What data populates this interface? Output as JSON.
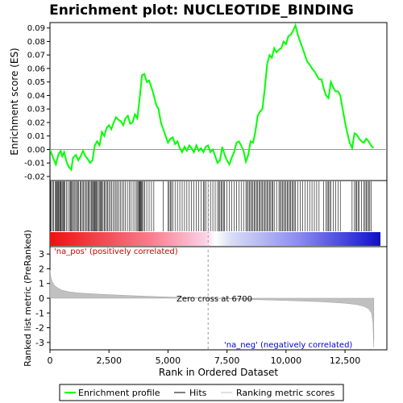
{
  "chart_data": {
    "type": "line",
    "title": "Enrichment plot: NUCLEOTIDE_BINDING",
    "top_panel": {
      "ylabel": "Enrichment score (ES)",
      "ylim": [
        -0.023,
        0.094
      ],
      "yticks": [
        "0.09",
        "0.08",
        "0.07",
        "0.06",
        "0.05",
        "0.04",
        "0.03",
        "0.02",
        "0.01",
        "0.00",
        "-0.01",
        "-0.02"
      ],
      "ytick_values": [
        0.09,
        0.08,
        0.07,
        0.06,
        0.05,
        0.04,
        0.03,
        0.02,
        0.01,
        0.0,
        -0.01,
        -0.02
      ],
      "series_name": "Enrichment profile",
      "color": "#00ff00",
      "points": [
        [
          0,
          0.0
        ],
        [
          150,
          -0.007
        ],
        [
          250,
          -0.011
        ],
        [
          350,
          -0.004
        ],
        [
          450,
          -0.001
        ],
        [
          520,
          -0.005
        ],
        [
          600,
          -0.002
        ],
        [
          700,
          -0.009
        ],
        [
          800,
          -0.013
        ],
        [
          900,
          -0.015
        ],
        [
          980,
          -0.006
        ],
        [
          1100,
          -0.004
        ],
        [
          1200,
          -0.008
        ],
        [
          1300,
          -0.005
        ],
        [
          1400,
          -0.001
        ],
        [
          1500,
          -0.005
        ],
        [
          1600,
          -0.007
        ],
        [
          1700,
          -0.01
        ],
        [
          1800,
          -0.008
        ],
        [
          1900,
          0.003
        ],
        [
          2000,
          0.006
        ],
        [
          2100,
          0.003
        ],
        [
          2200,
          0.013
        ],
        [
          2300,
          0.01
        ],
        [
          2400,
          0.016
        ],
        [
          2500,
          0.018
        ],
        [
          2600,
          0.015
        ],
        [
          2700,
          0.02
        ],
        [
          2800,
          0.024
        ],
        [
          2900,
          0.022
        ],
        [
          3000,
          0.021
        ],
        [
          3100,
          0.018
        ],
        [
          3200,
          0.023
        ],
        [
          3300,
          0.025
        ],
        [
          3400,
          0.019
        ],
        [
          3500,
          0.02
        ],
        [
          3600,
          0.026
        ],
        [
          3700,
          0.023
        ],
        [
          3800,
          0.038
        ],
        [
          3900,
          0.055
        ],
        [
          4000,
          0.056
        ],
        [
          4100,
          0.05
        ],
        [
          4200,
          0.051
        ],
        [
          4300,
          0.046
        ],
        [
          4400,
          0.04
        ],
        [
          4500,
          0.033
        ],
        [
          4600,
          0.03
        ],
        [
          4700,
          0.02
        ],
        [
          4800,
          0.015
        ],
        [
          4900,
          0.01
        ],
        [
          5000,
          0.005
        ],
        [
          5100,
          0.008
        ],
        [
          5200,
          0.009
        ],
        [
          5300,
          0.004
        ],
        [
          5400,
          0.006
        ],
        [
          5500,
          0.001
        ],
        [
          5600,
          -0.002
        ],
        [
          5700,
          0.002
        ],
        [
          5800,
          -0.001
        ],
        [
          5900,
          0.003
        ],
        [
          6000,
          0.001
        ],
        [
          6100,
          -0.002
        ],
        [
          6200,
          0.003
        ],
        [
          6300,
          -0.001
        ],
        [
          6400,
          0.001
        ],
        [
          6500,
          -0.002
        ],
        [
          6600,
          0.002
        ],
        [
          6700,
          0.003
        ],
        [
          6800,
          -0.002
        ],
        [
          6900,
          0.0
        ],
        [
          7000,
          -0.005
        ],
        [
          7100,
          -0.01
        ],
        [
          7200,
          -0.008
        ],
        [
          7300,
          0.002
        ],
        [
          7400,
          -0.004
        ],
        [
          7500,
          -0.008
        ],
        [
          7600,
          -0.011
        ],
        [
          7700,
          -0.006
        ],
        [
          7800,
          -0.002
        ],
        [
          7900,
          0.005
        ],
        [
          8000,
          0.006
        ],
        [
          8100,
          0.003
        ],
        [
          8200,
          -0.001
        ],
        [
          8300,
          -0.009
        ],
        [
          8400,
          -0.004
        ],
        [
          8500,
          0.006
        ],
        [
          8600,
          0.005
        ],
        [
          8700,
          0.013
        ],
        [
          8800,
          0.025
        ],
        [
          8900,
          0.028
        ],
        [
          9000,
          0.03
        ],
        [
          9100,
          0.045
        ],
        [
          9200,
          0.063
        ],
        [
          9300,
          0.07
        ],
        [
          9400,
          0.068
        ],
        [
          9500,
          0.075
        ],
        [
          9600,
          0.072
        ],
        [
          9700,
          0.074
        ],
        [
          9800,
          0.075
        ],
        [
          9900,
          0.08
        ],
        [
          10000,
          0.078
        ],
        [
          10100,
          0.084
        ],
        [
          10200,
          0.085
        ],
        [
          10300,
          0.088
        ],
        [
          10400,
          0.092
        ],
        [
          10500,
          0.085
        ],
        [
          10600,
          0.08
        ],
        [
          10700,
          0.075
        ],
        [
          10800,
          0.07
        ],
        [
          10900,
          0.065
        ],
        [
          11000,
          0.063
        ],
        [
          11100,
          0.06
        ],
        [
          11200,
          0.058
        ],
        [
          11300,
          0.055
        ],
        [
          11400,
          0.052
        ],
        [
          11500,
          0.052
        ],
        [
          11600,
          0.045
        ],
        [
          11700,
          0.04
        ],
        [
          11800,
          0.038
        ],
        [
          11900,
          0.05
        ],
        [
          12000,
          0.046
        ],
        [
          12100,
          0.043
        ],
        [
          12200,
          0.043
        ],
        [
          12300,
          0.04
        ],
        [
          12400,
          0.03
        ],
        [
          12500,
          0.02
        ],
        [
          12600,
          0.012
        ],
        [
          12700,
          0.005
        ],
        [
          12800,
          0.001
        ],
        [
          12900,
          0.012
        ],
        [
          13000,
          0.011
        ],
        [
          13100,
          0.008
        ],
        [
          13200,
          0.006
        ],
        [
          13300,
          0.005
        ],
        [
          13400,
          0.008
        ],
        [
          13500,
          0.006
        ],
        [
          13600,
          0.003
        ],
        [
          13700,
          0.001
        ]
      ]
    },
    "hits_panel": {
      "series_name": "Hits",
      "color": "#000000",
      "hit_positions": [
        20,
        60,
        110,
        160,
        230,
        260,
        290,
        320,
        350,
        380,
        420,
        450,
        480,
        520,
        560,
        600,
        630,
        700,
        760,
        830,
        870,
        900,
        950,
        990,
        1030,
        1090,
        1130,
        1170,
        1220,
        1280,
        1320,
        1370,
        1420,
        1470,
        1530,
        1570,
        1620,
        1660,
        1710,
        1760,
        1800,
        1840,
        1870,
        1900,
        1930,
        1960,
        2000,
        2050,
        2090,
        2130,
        2170,
        2210,
        2250,
        2300,
        2340,
        2400,
        2450,
        2500,
        2560,
        2620,
        2680,
        2740,
        2800,
        2860,
        2920,
        2990,
        3060,
        3130,
        3200,
        3280,
        3360,
        3440,
        3520,
        3600,
        3680,
        3720,
        3760,
        3790,
        3820,
        3850,
        3880,
        3910,
        3960,
        4010,
        4100,
        4200,
        4300,
        4400,
        4800,
        5000,
        5050,
        5100,
        5150,
        5200,
        5300,
        5400,
        5500,
        5600,
        5700,
        5800,
        5900,
        6000,
        6100,
        6200,
        6300,
        6400,
        6500,
        6550,
        6600,
        6700,
        6800,
        6900,
        7000,
        7100,
        7150,
        7200,
        7250,
        7300,
        7350,
        7400,
        7500,
        7600,
        7700,
        7800,
        7900,
        8000,
        8100,
        8200,
        8300,
        8350,
        8400,
        8450,
        8500,
        8550,
        8600,
        8650,
        8700,
        8750,
        8800,
        8850,
        8900,
        8950,
        9000,
        9050,
        9100,
        9150,
        9200,
        9250,
        9300,
        9350,
        9400,
        9450,
        9500,
        9600,
        9700,
        9750,
        9800,
        9850,
        9900,
        9950,
        10000,
        10050,
        10100,
        10150,
        10200,
        10250,
        10300,
        10350,
        10400,
        10500,
        10600,
        10700,
        10800,
        10900,
        11000,
        11100,
        11200,
        11300,
        11400,
        11600,
        11700,
        11750,
        11800,
        11850,
        11900,
        12000,
        12100,
        12200,
        12300,
        12800,
        12900,
        12950,
        13000,
        13050,
        13100,
        13200,
        13300,
        13350,
        13400,
        13450,
        13500,
        13550,
        13600
      ]
    },
    "legend": {
      "position": "bottom",
      "entries": [
        "Enrichment profile",
        "Hits",
        "Ranking metric scores"
      ]
    },
    "bottom_panel": {
      "ylabel": "Ranked list metric (PreRanked)",
      "xlabel": "Rank in Ordered Dataset",
      "ylim": [
        -3.5,
        3.5
      ],
      "yticks": [
        "3",
        "2",
        "1",
        "0",
        "-1",
        "-2",
        "-3"
      ],
      "ytick_values": [
        3,
        2,
        1,
        0,
        -1,
        -2,
        -3
      ],
      "xlim": [
        0,
        14300
      ],
      "xticks": [
        "0",
        "2,500",
        "5,000",
        "7,500",
        "10,000",
        "12,500"
      ],
      "xtick_values": [
        0,
        2500,
        5000,
        7500,
        10000,
        12500
      ],
      "series_name": "Ranking metric scores",
      "color": "#c0c0c0",
      "metric_points": [
        [
          0,
          1.9
        ],
        [
          40,
          1.4
        ],
        [
          100,
          1.1
        ],
        [
          200,
          0.85
        ],
        [
          350,
          0.68
        ],
        [
          500,
          0.55
        ],
        [
          800,
          0.44
        ],
        [
          1200,
          0.36
        ],
        [
          1800,
          0.3
        ],
        [
          2500,
          0.24
        ],
        [
          3500,
          0.17
        ],
        [
          4500,
          0.11
        ],
        [
          5500,
          0.06
        ],
        [
          6700,
          0.0
        ],
        [
          7500,
          -0.04
        ],
        [
          8500,
          -0.09
        ],
        [
          9500,
          -0.13
        ],
        [
          10500,
          -0.18
        ],
        [
          11500,
          -0.24
        ],
        [
          12500,
          -0.34
        ],
        [
          13000,
          -0.43
        ],
        [
          13300,
          -0.55
        ],
        [
          13500,
          -0.72
        ],
        [
          13620,
          -1.0
        ],
        [
          13680,
          -1.6
        ],
        [
          13720,
          -3.35
        ]
      ],
      "zero_cross_label": "Zero cross at 6700",
      "zero_cross": 6700,
      "pos_label": "'na_pos' (positively correlated)",
      "neg_label": "'na_neg' (negatively correlated)"
    },
    "n_genes": 13720
  }
}
